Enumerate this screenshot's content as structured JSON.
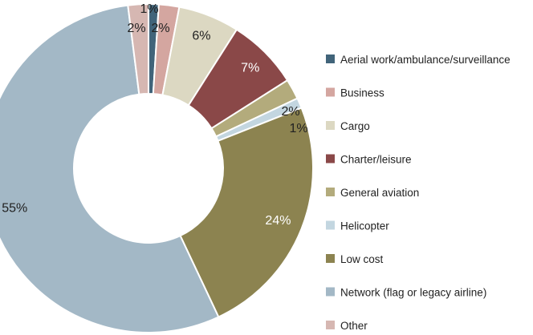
{
  "chart_data": {
    "type": "pie",
    "variant": "donut",
    "legend_position": "right",
    "categories": [
      "Aerial work/ambulance/surveillance",
      "Business",
      "Cargo",
      "Charter/leisure",
      "General aviation",
      "Helicopter",
      "Low cost",
      "Network (flag or legacy airline)",
      "Other"
    ],
    "values": [
      1,
      2,
      6,
      7,
      2,
      1,
      24,
      55,
      2
    ],
    "value_labels": [
      "1%",
      "2%",
      "6%",
      "7%",
      "2%",
      "1%",
      "24%",
      "55%",
      "2%"
    ],
    "colors": [
      "#41647a",
      "#d4a6a0",
      "#dcd8c2",
      "#8a4848",
      "#b3ab7c",
      "#c3d6e0",
      "#8c8350",
      "#a3b8c6",
      "#d6b7b2"
    ]
  }
}
